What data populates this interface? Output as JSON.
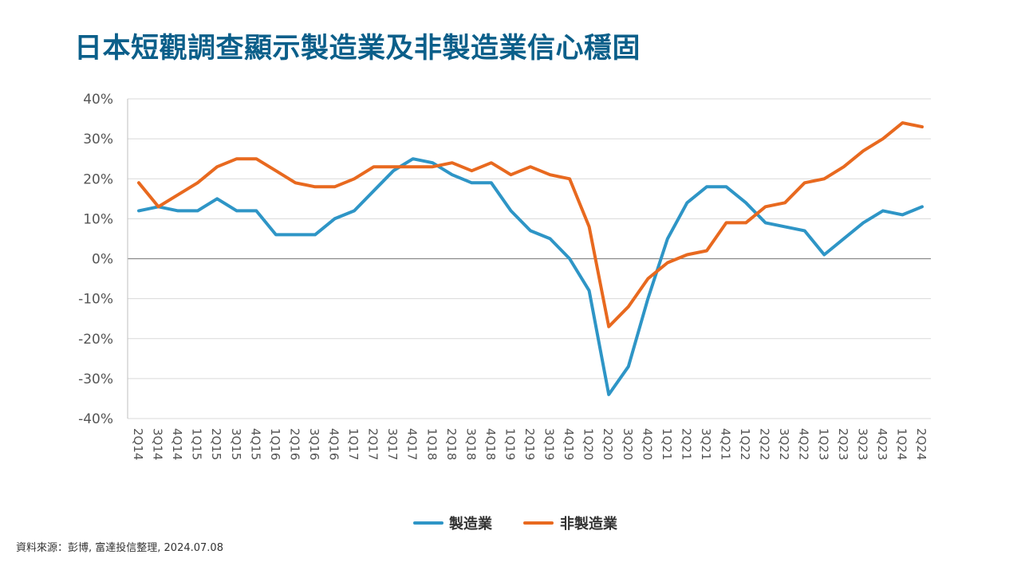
{
  "title": "日本短觀調查顯示製造業及非製造業信心穩固",
  "source": "資料來源：彭博, 富達投信整理, 2024.07.08",
  "chart_data": {
    "type": "line",
    "title": "日本短觀調查顯示製造業及非製造業信心穩固",
    "xlabel": "",
    "ylabel": "",
    "ylim": [
      -40,
      40
    ],
    "yticks": [
      40,
      30,
      20,
      10,
      0,
      -10,
      -20,
      -30,
      -40
    ],
    "ytick_labels": [
      "40%",
      "30%",
      "20%",
      "10%",
      "0%",
      "-10%",
      "-20%",
      "-30%",
      "-40%"
    ],
    "grid": true,
    "legend_position": "bottom",
    "categories": [
      "2Q14",
      "3Q14",
      "4Q14",
      "1Q15",
      "2Q15",
      "3Q15",
      "4Q15",
      "1Q16",
      "2Q16",
      "3Q16",
      "4Q16",
      "1Q17",
      "2Q17",
      "3Q17",
      "4Q17",
      "1Q18",
      "2Q18",
      "3Q18",
      "4Q18",
      "1Q19",
      "2Q19",
      "3Q19",
      "4Q19",
      "1Q20",
      "2Q20",
      "3Q20",
      "4Q20",
      "1Q21",
      "2Q21",
      "3Q21",
      "4Q21",
      "1Q22",
      "2Q22",
      "3Q22",
      "4Q22",
      "1Q23",
      "2Q23",
      "3Q23",
      "4Q23",
      "1Q24",
      "2Q24"
    ],
    "series": [
      {
        "name": "製造業",
        "color": "#2e95c6",
        "values": [
          12,
          13,
          12,
          12,
          15,
          12,
          12,
          6,
          6,
          6,
          10,
          12,
          17,
          22,
          25,
          24,
          21,
          19,
          19,
          12,
          7,
          5,
          0,
          -8,
          -34,
          -27,
          -10,
          5,
          14,
          18,
          18,
          14,
          9,
          8,
          7,
          1,
          5,
          9,
          12,
          11,
          13
        ]
      },
      {
        "name": "非製造業",
        "color": "#e8691f",
        "values": [
          19,
          13,
          16,
          19,
          23,
          25,
          25,
          22,
          19,
          18,
          18,
          20,
          23,
          23,
          23,
          23,
          24,
          22,
          24,
          21,
          23,
          21,
          20,
          8,
          -17,
          -12,
          -5,
          -1,
          1,
          2,
          9,
          9,
          13,
          14,
          19,
          20,
          23,
          27,
          30,
          34,
          33
        ]
      }
    ]
  }
}
